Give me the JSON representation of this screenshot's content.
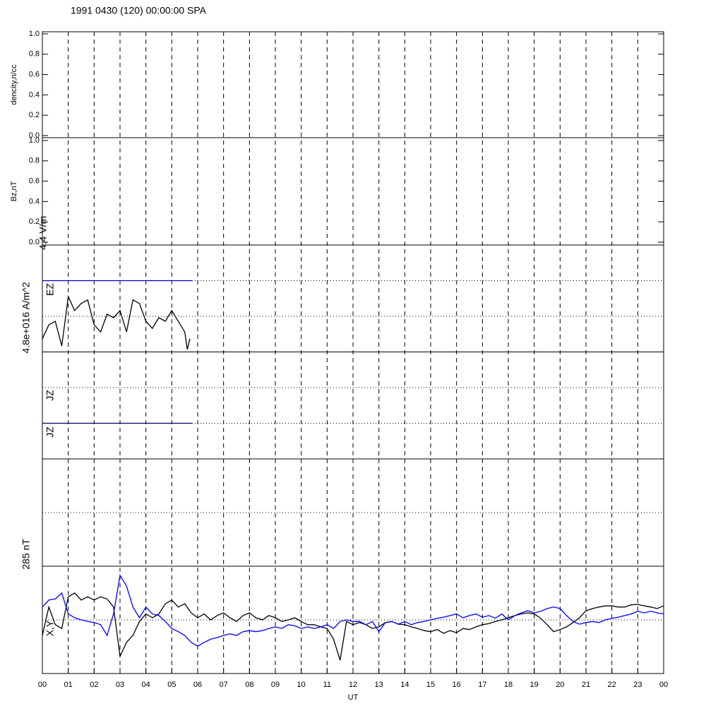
{
  "chart_data": [
    {
      "type": "line",
      "title": "1991 0430 (120) 00:00:00 SPA",
      "ylabel": "dencity,n/cc",
      "ylim": [
        0,
        1
      ],
      "yticks": [
        {
          "value": 0,
          "label": "0.0"
        },
        {
          "value": 0.2,
          "label": "0.2"
        },
        {
          "value": 0.4,
          "label": "0.4"
        },
        {
          "value": 0.6,
          "label": "0.6"
        },
        {
          "value": 0.8,
          "label": "0.8"
        },
        {
          "value": 1,
          "label": "1.0"
        }
      ]
    },
    {
      "type": "line",
      "ylabel": "Bz,nT",
      "ylim": [
        0,
        1
      ],
      "yticks": [
        {
          "value": 0,
          "label": "0.0"
        },
        {
          "value": 0.2,
          "label": "0.2"
        },
        {
          "value": 0.4,
          "label": "0.4"
        },
        {
          "value": 0.6,
          "label": "0.6"
        },
        {
          "value": 0.8,
          "label": "0.8"
        },
        {
          "value": 1,
          "label": "1.0"
        }
      ]
    },
    {
      "type": "line",
      "ylabel": "4.8e+016 A/m^2",
      "scale_label": "4.4 V/m",
      "ylim": [
        0,
        6
      ],
      "hlines": [
        {
          "value": 1,
          "style": "dotted"
        },
        {
          "value": 2,
          "style": "dotted"
        },
        {
          "value": 3,
          "style": "solid"
        },
        {
          "value": 4,
          "style": "dotted"
        },
        {
          "value": 5,
          "style": "dotted"
        }
      ],
      "series": [
        {
          "name": "EZ",
          "color": "#000000",
          "x": [
            0,
            0.25,
            0.5,
            0.75,
            1,
            1.25,
            1.5,
            1.75,
            2,
            2.25,
            2.5,
            2.75,
            3,
            3.25,
            3.5,
            3.75,
            4,
            4.25,
            4.5,
            4.75,
            5,
            5.25,
            5.5,
            5.6,
            5.7
          ],
          "values": [
            3.37,
            3.76,
            3.86,
            3.17,
            4.55,
            4.16,
            4.36,
            4.46,
            3.76,
            3.56,
            4.06,
            3.96,
            4.16,
            3.56,
            4.46,
            4.36,
            3.86,
            3.66,
            3.96,
            3.86,
            4.16,
            3.86,
            3.56,
            3.07,
            3.37
          ]
        },
        {
          "name": "JZ",
          "color": "#0000cc",
          "x": [
            0,
            5.8
          ],
          "values": [
            5,
            5
          ]
        },
        {
          "name": "JZ",
          "color": "#000066",
          "x": [
            0,
            5.8
          ],
          "values": [
            1,
            1
          ]
        }
      ]
    },
    {
      "type": "line",
      "ylabel": "285 nT",
      "ylim": [
        -1,
        1
      ],
      "hlines": [
        {
          "value": 0,
          "style": "dotted"
        }
      ]
    },
    {
      "type": "line",
      "label": "X,Y",
      "ylim": [
        -1,
        1
      ],
      "xlim": [
        0,
        24
      ],
      "xlabel": "UT",
      "hlines": [
        {
          "value": 0,
          "style": "dotted"
        }
      ],
      "x": [
        0,
        0.25,
        0.5,
        0.75,
        1,
        1.25,
        1.5,
        1.75,
        2,
        2.25,
        2.5,
        2.75,
        3,
        3.25,
        3.5,
        3.75,
        4,
        4.25,
        4.5,
        4.75,
        5,
        5.25,
        5.5,
        5.75,
        6,
        6.25,
        6.5,
        6.75,
        7,
        7.25,
        7.5,
        7.75,
        8,
        8.25,
        8.5,
        8.75,
        9,
        9.25,
        9.5,
        9.75,
        10,
        10.25,
        10.5,
        10.75,
        11,
        11.25,
        11.5,
        11.75,
        12,
        12.25,
        12.5,
        12.75,
        13,
        13.25,
        13.5,
        13.75,
        14,
        14.25,
        14.5,
        14.75,
        15,
        15.25,
        15.5,
        15.75,
        16,
        16.25,
        16.5,
        16.75,
        17,
        17.25,
        17.5,
        17.75,
        18,
        18.25,
        18.5,
        18.75,
        19,
        19.25,
        19.5,
        19.75,
        20,
        20.25,
        20.5,
        20.75,
        21,
        21.25,
        21.5,
        21.75,
        22,
        22.25,
        22.5,
        22.75,
        23,
        23.25,
        23.5,
        23.75,
        24
      ],
      "series": [
        {
          "color": "#000000",
          "values": [
            -0.29,
            0.24,
            -0.09,
            -0.16,
            0.43,
            0.5,
            0.37,
            0.43,
            0.37,
            0.43,
            0.39,
            0.24,
            -0.68,
            -0.42,
            -0.29,
            -0.03,
            0.11,
            0.04,
            0.11,
            0.3,
            0.37,
            0.24,
            0.3,
            0.13,
            0.04,
            0.11,
            0,
            0.08,
            0.13,
            0.04,
            -0.03,
            0.08,
            0.13,
            0.04,
            0,
            0.08,
            0.04,
            -0.03,
            0,
            0.04,
            -0.03,
            -0.09,
            -0.09,
            -0.13,
            -0.16,
            -0.36,
            -0.75,
            -0.03,
            -0.09,
            -0.05,
            -0.09,
            -0.16,
            -0.13,
            -0.05,
            -0.03,
            -0.08,
            -0.09,
            -0.13,
            -0.16,
            -0.2,
            -0.22,
            -0.18,
            -0.25,
            -0.2,
            -0.24,
            -0.16,
            -0.18,
            -0.13,
            -0.09,
            -0.07,
            -0.03,
            0,
            0.04,
            0.08,
            0.11,
            0.13,
            0.11,
            0.03,
            -0.09,
            -0.22,
            -0.18,
            -0.13,
            -0.05,
            0.04,
            0.17,
            0.21,
            0.24,
            0.26,
            0.26,
            0.24,
            0.24,
            0.28,
            0.29,
            0.26,
            0.24,
            0.21,
            0.26
          ]
        },
        {
          "color": "#0000ff",
          "values": [
            0.24,
            0.37,
            0.39,
            0.5,
            0.11,
            0.04,
            0,
            -0.03,
            -0.05,
            -0.09,
            -0.29,
            0.11,
            0.83,
            0.63,
            0.24,
            0.04,
            0.24,
            0.11,
            0.08,
            -0.03,
            -0.16,
            -0.22,
            -0.29,
            -0.42,
            -0.49,
            -0.42,
            -0.36,
            -0.33,
            -0.29,
            -0.26,
            -0.29,
            -0.22,
            -0.2,
            -0.22,
            -0.2,
            -0.16,
            -0.13,
            -0.16,
            -0.09,
            -0.11,
            -0.16,
            -0.13,
            -0.16,
            -0.13,
            -0.09,
            -0.16,
            -0.03,
            0,
            -0.03,
            -0.03,
            -0.09,
            -0.03,
            -0.22,
            -0.05,
            -0.03,
            -0.08,
            -0.03,
            -0.09,
            -0.05,
            -0.03,
            0,
            0.03,
            0.05,
            0.08,
            0.11,
            0.04,
            0.08,
            0.11,
            0.05,
            0.08,
            0.03,
            0.11,
            0,
            0.08,
            0.13,
            0.17,
            0.13,
            0.16,
            0.21,
            0.24,
            0.21,
            0.08,
            -0.03,
            -0.08,
            -0.05,
            -0.03,
            -0.05,
            0,
            0.03,
            0.05,
            0.08,
            0.11,
            0.16,
            0.13,
            0.16,
            0.13,
            0.11
          ]
        }
      ],
      "xticks": [
        {
          "value": 0,
          "label": "00"
        },
        {
          "value": 1,
          "label": "01"
        },
        {
          "value": 2,
          "label": "02"
        },
        {
          "value": 3,
          "label": "03"
        },
        {
          "value": 4,
          "label": "04"
        },
        {
          "value": 5,
          "label": "05"
        },
        {
          "value": 6,
          "label": "06"
        },
        {
          "value": 7,
          "label": "07"
        },
        {
          "value": 8,
          "label": "08"
        },
        {
          "value": 9,
          "label": "09"
        },
        10,
        11,
        12,
        13,
        14,
        15,
        16,
        17,
        18,
        19,
        20,
        21,
        22,
        23,
        {
          "value": 24,
          "label": "00"
        }
      ]
    }
  ]
}
